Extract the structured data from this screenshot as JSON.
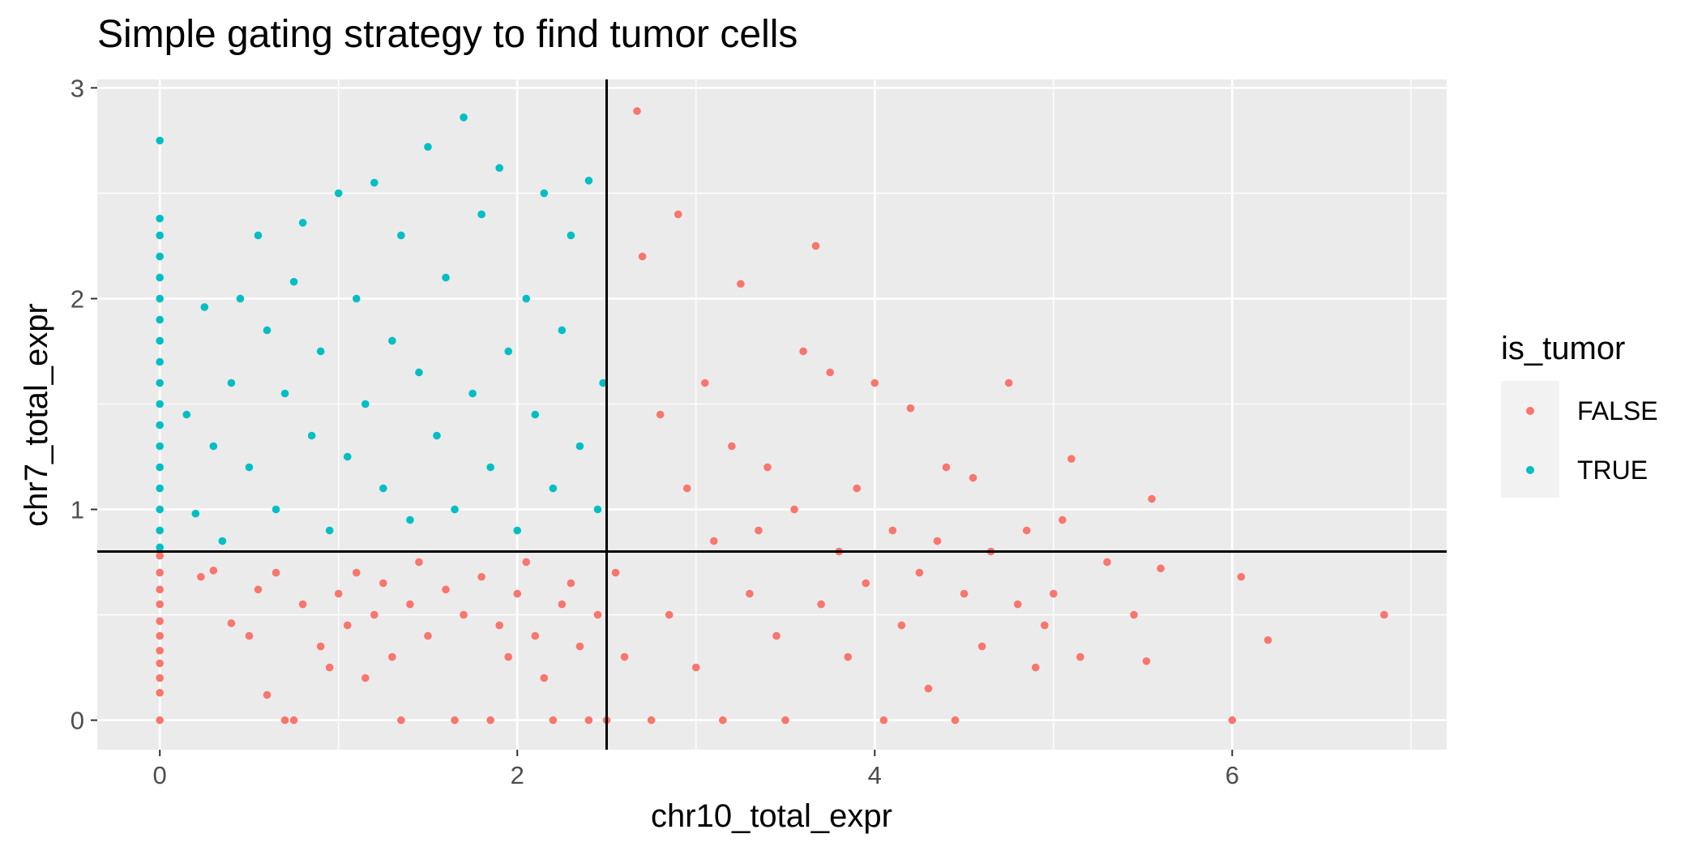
{
  "chart_data": {
    "type": "scatter",
    "title": "Simple gating strategy to find tumor cells",
    "xlabel": "chr10_total_expr",
    "ylabel": "chr7_total_expr",
    "xlim": [
      -0.35,
      7.2
    ],
    "ylim": [
      -0.14,
      3.04
    ],
    "x_ticks": [
      "0",
      "2",
      "4",
      "6"
    ],
    "x_tick_values": [
      0,
      2,
      4,
      6
    ],
    "y_ticks": [
      "0",
      "1",
      "2",
      "3"
    ],
    "y_tick_values": [
      0,
      1,
      2,
      3
    ],
    "grid": true,
    "gate_lines": {
      "vertical_x": 2.5,
      "horizontal_y": 0.8
    },
    "legend": {
      "title": "is_tumor",
      "placement": "right",
      "entries": [
        {
          "label": "FALSE",
          "color": "#F8766D"
        },
        {
          "label": "TRUE",
          "color": "#00BFC4"
        }
      ]
    },
    "series": [
      {
        "name": "FALSE",
        "color": "#F8766D",
        "points": [
          [
            0,
            0
          ],
          [
            0,
            0.13
          ],
          [
            0,
            0.2
          ],
          [
            0,
            0.27
          ],
          [
            0,
            0.33
          ],
          [
            0,
            0.4
          ],
          [
            0,
            0.47
          ],
          [
            0,
            0.55
          ],
          [
            0,
            0.62
          ],
          [
            0,
            0.7
          ],
          [
            0,
            0.78
          ],
          [
            0.23,
            0.68
          ],
          [
            0.3,
            0.71
          ],
          [
            0.4,
            0.46
          ],
          [
            0.5,
            0.4
          ],
          [
            0.55,
            0.62
          ],
          [
            0.6,
            0.12
          ],
          [
            0.65,
            0.7
          ],
          [
            0.7,
            0.0
          ],
          [
            0.75,
            0.0
          ],
          [
            0.8,
            0.55
          ],
          [
            0.9,
            0.35
          ],
          [
            0.95,
            0.25
          ],
          [
            1.0,
            0.6
          ],
          [
            1.05,
            0.45
          ],
          [
            1.1,
            0.7
          ],
          [
            1.15,
            0.2
          ],
          [
            1.2,
            0.5
          ],
          [
            1.25,
            0.65
          ],
          [
            1.3,
            0.3
          ],
          [
            1.35,
            0.0
          ],
          [
            1.4,
            0.55
          ],
          [
            1.45,
            0.75
          ],
          [
            1.5,
            0.4
          ],
          [
            1.6,
            0.62
          ],
          [
            1.65,
            0.0
          ],
          [
            1.7,
            0.5
          ],
          [
            1.8,
            0.68
          ],
          [
            1.85,
            0.0
          ],
          [
            1.9,
            0.45
          ],
          [
            1.95,
            0.3
          ],
          [
            2.0,
            0.6
          ],
          [
            2.05,
            0.75
          ],
          [
            2.1,
            0.4
          ],
          [
            2.15,
            0.2
          ],
          [
            2.2,
            0.0
          ],
          [
            2.25,
            0.55
          ],
          [
            2.3,
            0.65
          ],
          [
            2.35,
            0.35
          ],
          [
            2.4,
            0.0
          ],
          [
            2.45,
            0.5
          ],
          [
            2.5,
            0.0
          ],
          [
            2.55,
            0.7
          ],
          [
            2.6,
            0.3
          ],
          [
            2.67,
            2.89
          ],
          [
            2.7,
            2.2
          ],
          [
            2.75,
            0.0
          ],
          [
            2.8,
            1.45
          ],
          [
            2.85,
            0.5
          ],
          [
            2.9,
            2.4
          ],
          [
            2.95,
            1.1
          ],
          [
            3.0,
            0.25
          ],
          [
            3.05,
            1.6
          ],
          [
            3.1,
            0.85
          ],
          [
            3.15,
            0.0
          ],
          [
            3.2,
            1.3
          ],
          [
            3.25,
            2.07
          ],
          [
            3.3,
            0.6
          ],
          [
            3.35,
            0.9
          ],
          [
            3.4,
            1.2
          ],
          [
            3.45,
            0.4
          ],
          [
            3.5,
            0.0
          ],
          [
            3.55,
            1.0
          ],
          [
            3.6,
            1.75
          ],
          [
            3.67,
            2.25
          ],
          [
            3.7,
            0.55
          ],
          [
            3.75,
            1.65
          ],
          [
            3.8,
            0.8
          ],
          [
            3.85,
            0.3
          ],
          [
            3.9,
            1.1
          ],
          [
            3.95,
            0.65
          ],
          [
            4.0,
            1.6
          ],
          [
            4.05,
            0.0
          ],
          [
            4.1,
            0.9
          ],
          [
            4.15,
            0.45
          ],
          [
            4.2,
            1.48
          ],
          [
            4.25,
            0.7
          ],
          [
            4.3,
            0.15
          ],
          [
            4.35,
            0.85
          ],
          [
            4.4,
            1.2
          ],
          [
            4.45,
            0.0
          ],
          [
            4.5,
            0.6
          ],
          [
            4.55,
            1.15
          ],
          [
            4.6,
            0.35
          ],
          [
            4.65,
            0.8
          ],
          [
            4.75,
            1.6
          ],
          [
            4.8,
            0.55
          ],
          [
            4.85,
            0.9
          ],
          [
            4.9,
            0.25
          ],
          [
            4.95,
            0.45
          ],
          [
            5.0,
            0.6
          ],
          [
            5.05,
            0.95
          ],
          [
            5.1,
            1.24
          ],
          [
            5.15,
            0.3
          ],
          [
            5.3,
            0.75
          ],
          [
            5.45,
            0.5
          ],
          [
            5.52,
            0.28
          ],
          [
            5.55,
            1.05
          ],
          [
            5.6,
            0.72
          ],
          [
            6.0,
            0.0
          ],
          [
            6.05,
            0.68
          ],
          [
            6.2,
            0.38
          ],
          [
            6.85,
            0.5
          ]
        ]
      },
      {
        "name": "TRUE",
        "color": "#00BFC4",
        "points": [
          [
            0,
            0.82
          ],
          [
            0,
            0.9
          ],
          [
            0,
            1.0
          ],
          [
            0,
            1.1
          ],
          [
            0,
            1.2
          ],
          [
            0,
            1.3
          ],
          [
            0,
            1.4
          ],
          [
            0,
            1.5
          ],
          [
            0,
            1.6
          ],
          [
            0,
            1.7
          ],
          [
            0,
            1.8
          ],
          [
            0,
            1.9
          ],
          [
            0,
            2.0
          ],
          [
            0,
            2.1
          ],
          [
            0,
            2.2
          ],
          [
            0,
            2.3
          ],
          [
            0,
            2.38
          ],
          [
            0,
            2.75
          ],
          [
            0.15,
            1.45
          ],
          [
            0.2,
            0.98
          ],
          [
            0.25,
            1.96
          ],
          [
            0.3,
            1.3
          ],
          [
            0.35,
            0.85
          ],
          [
            0.4,
            1.6
          ],
          [
            0.45,
            2.0
          ],
          [
            0.5,
            1.2
          ],
          [
            0.55,
            2.3
          ],
          [
            0.6,
            1.85
          ],
          [
            0.65,
            1.0
          ],
          [
            0.7,
            1.55
          ],
          [
            0.75,
            2.08
          ],
          [
            0.8,
            2.36
          ],
          [
            0.85,
            1.35
          ],
          [
            0.9,
            1.75
          ],
          [
            0.95,
            0.9
          ],
          [
            1.0,
            2.5
          ],
          [
            1.05,
            1.25
          ],
          [
            1.1,
            2.0
          ],
          [
            1.15,
            1.5
          ],
          [
            1.2,
            2.55
          ],
          [
            1.25,
            1.1
          ],
          [
            1.3,
            1.8
          ],
          [
            1.35,
            2.3
          ],
          [
            1.4,
            0.95
          ],
          [
            1.45,
            1.65
          ],
          [
            1.5,
            2.72
          ],
          [
            1.55,
            1.35
          ],
          [
            1.6,
            2.1
          ],
          [
            1.65,
            1.0
          ],
          [
            1.7,
            2.86
          ],
          [
            1.75,
            1.55
          ],
          [
            1.8,
            2.4
          ],
          [
            1.85,
            1.2
          ],
          [
            1.9,
            2.62
          ],
          [
            1.95,
            1.75
          ],
          [
            2.0,
            0.9
          ],
          [
            2.05,
            2.0
          ],
          [
            2.1,
            1.45
          ],
          [
            2.15,
            2.5
          ],
          [
            2.2,
            1.1
          ],
          [
            2.25,
            1.85
          ],
          [
            2.3,
            2.3
          ],
          [
            2.35,
            1.3
          ],
          [
            2.4,
            2.56
          ],
          [
            2.45,
            1.0
          ],
          [
            2.48,
            1.6
          ]
        ]
      }
    ]
  }
}
